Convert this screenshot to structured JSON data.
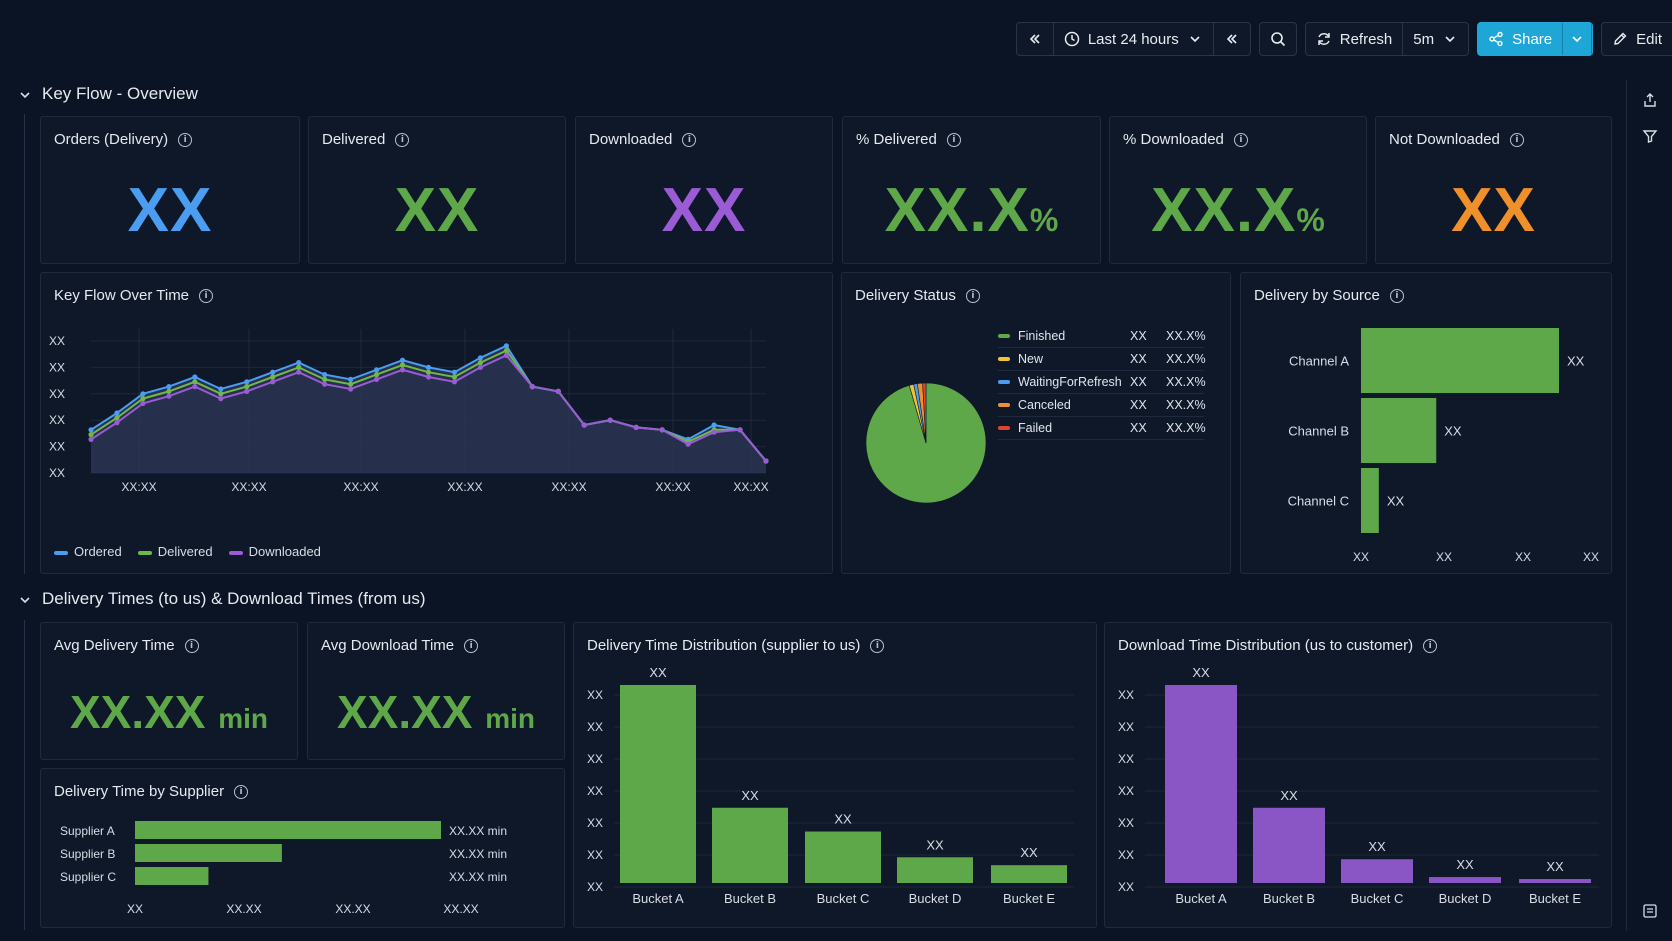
{
  "toolbar": {
    "time_range": "Last 24 hours",
    "refresh_label": "Refresh",
    "refresh_interval": "5m",
    "share_label": "Share",
    "edit_label": "Edit"
  },
  "sections": {
    "overview": "Key Flow - Overview",
    "times": "Delivery Times (to us) & Download Times (from us)"
  },
  "stats": [
    {
      "title": "Orders (Delivery)",
      "value": "XX",
      "unit": "",
      "color": "#4a9df0"
    },
    {
      "title": "Delivered",
      "value": "XX",
      "unit": "",
      "color": "#5fa84a"
    },
    {
      "title": "Downloaded",
      "value": "XX",
      "unit": "",
      "color": "#9a5bd4"
    },
    {
      "title": "% Delivered",
      "value": "XX.X",
      "unit": "%",
      "color": "#5fa84a"
    },
    {
      "title": "% Downloaded",
      "value": "XX.X",
      "unit": "%",
      "color": "#5fa84a"
    },
    {
      "title": "Not Downloaded",
      "value": "XX",
      "unit": "",
      "color": "#f0902a"
    }
  ],
  "avg_stats": [
    {
      "title": "Avg Delivery Time",
      "value": "XX.XX",
      "unit": "min",
      "color": "#5fa84a"
    },
    {
      "title": "Avg Download Time",
      "value": "XX.XX",
      "unit": "min",
      "color": "#5fa84a"
    }
  ],
  "panels": {
    "key_flow": "Key Flow Over Time",
    "delivery_status": "Delivery Status",
    "delivery_source": "Delivery by Source",
    "delivery_supplier": "Delivery Time by Supplier",
    "delivery_dist": "Delivery Time Distribution (supplier to us)",
    "download_dist": "Download Time Distribution (us to customer)"
  },
  "chart_data": [
    {
      "type": "line",
      "title": "Key Flow Over Time",
      "y_tick_labels": [
        "XX",
        "XX",
        "XX",
        "XX",
        "XX",
        "XX"
      ],
      "x_tick_labels": [
        "XX:XX",
        "XX:XX",
        "XX:XX",
        "XX:XX",
        "XX:XX",
        "XX:XX",
        "XX:XX"
      ],
      "x": [
        0,
        1,
        2,
        3,
        4,
        5,
        6,
        7,
        8,
        9,
        10,
        11,
        12,
        13,
        14,
        15,
        16,
        17,
        18,
        19,
        20,
        21,
        22,
        23,
        24,
        25,
        26
      ],
      "ylim": [
        0,
        6
      ],
      "series": [
        {
          "name": "Ordered",
          "color": "#4a9df0",
          "values": [
            1.8,
            2.5,
            3.3,
            3.6,
            4.0,
            3.5,
            3.8,
            4.2,
            4.6,
            4.1,
            3.9,
            4.3,
            4.7,
            4.4,
            4.2,
            4.8,
            5.3,
            3.6,
            3.4,
            2.0,
            2.2,
            1.9,
            1.8,
            1.4,
            2.0,
            1.8,
            0.5
          ]
        },
        {
          "name": "Delivered",
          "color": "#6fb84a",
          "values": [
            1.6,
            2.3,
            3.1,
            3.4,
            3.8,
            3.3,
            3.6,
            4.0,
            4.4,
            3.9,
            3.7,
            4.1,
            4.5,
            4.2,
            4.0,
            4.6,
            5.1,
            3.6,
            3.4,
            2.0,
            2.2,
            1.9,
            1.8,
            1.3,
            1.8,
            1.8,
            0.5
          ]
        },
        {
          "name": "Downloaded",
          "color": "#9a5bd4",
          "values": [
            1.4,
            2.1,
            2.9,
            3.2,
            3.6,
            3.1,
            3.4,
            3.8,
            4.2,
            3.7,
            3.5,
            3.9,
            4.3,
            4.0,
            3.8,
            4.4,
            4.9,
            3.6,
            3.4,
            2.0,
            2.2,
            1.9,
            1.8,
            1.2,
            1.7,
            1.8,
            0.5
          ]
        }
      ]
    },
    {
      "type": "pie",
      "title": "Delivery Status",
      "slices": [
        {
          "name": "Finished",
          "value": 95.5,
          "count": "XX",
          "pct": "XX.X%",
          "color": "#5fa84a"
        },
        {
          "name": "New",
          "value": 1.2,
          "count": "XX",
          "pct": "XX.X%",
          "color": "#f2c230"
        },
        {
          "name": "WaitingForRefresh",
          "value": 1.0,
          "count": "XX",
          "pct": "XX.X%",
          "color": "#4a9df0"
        },
        {
          "name": "Canceled",
          "value": 1.4,
          "count": "XX",
          "pct": "XX.X%",
          "color": "#f0902a"
        },
        {
          "name": "Failed",
          "value": 0.9,
          "count": "XX",
          "pct": "XX.X%",
          "color": "#e0442e"
        }
      ]
    },
    {
      "type": "bar",
      "orientation": "horizontal",
      "title": "Delivery by Source",
      "categories": [
        "Channel A",
        "Channel B",
        "Channel C"
      ],
      "values": [
        100,
        38,
        9
      ],
      "value_labels": [
        "XX",
        "XX",
        "XX"
      ],
      "x_tick_labels": [
        "XX",
        "XX",
        "XX",
        "XX"
      ],
      "color": "#5fa84a"
    },
    {
      "type": "bar",
      "orientation": "horizontal",
      "title": "Delivery Time by Supplier",
      "categories": [
        "Supplier A",
        "Supplier B",
        "Supplier C"
      ],
      "values": [
        100,
        48,
        24
      ],
      "value_labels": [
        "XX.XX min",
        "XX.XX min",
        "XX.XX min"
      ],
      "x_tick_labels": [
        "XX",
        "XX.XX",
        "XX.XX",
        "XX.XX"
      ],
      "color": "#5fa84a"
    },
    {
      "type": "bar",
      "title": "Delivery Time Distribution (supplier to us)",
      "categories": [
        "Bucket A",
        "Bucket B",
        "Bucket C",
        "Bucket D",
        "Bucket E"
      ],
      "values": [
        100,
        38,
        26,
        13,
        9
      ],
      "value_labels": [
        "XX",
        "XX",
        "XX",
        "XX",
        "XX"
      ],
      "y_tick_labels": [
        "XX",
        "XX",
        "XX",
        "XX",
        "XX",
        "XX",
        "XX"
      ],
      "color": "#5fa84a"
    },
    {
      "type": "bar",
      "title": "Download Time Distribution (us to customer)",
      "categories": [
        "Bucket A",
        "Bucket B",
        "Bucket C",
        "Bucket D",
        "Bucket E"
      ],
      "values": [
        100,
        38,
        12,
        3,
        2
      ],
      "value_labels": [
        "XX",
        "XX",
        "XX",
        "XX",
        "XX"
      ],
      "y_tick_labels": [
        "XX",
        "XX",
        "XX",
        "XX",
        "XX",
        "XX",
        "XX"
      ],
      "color": "#8a55c4"
    }
  ]
}
